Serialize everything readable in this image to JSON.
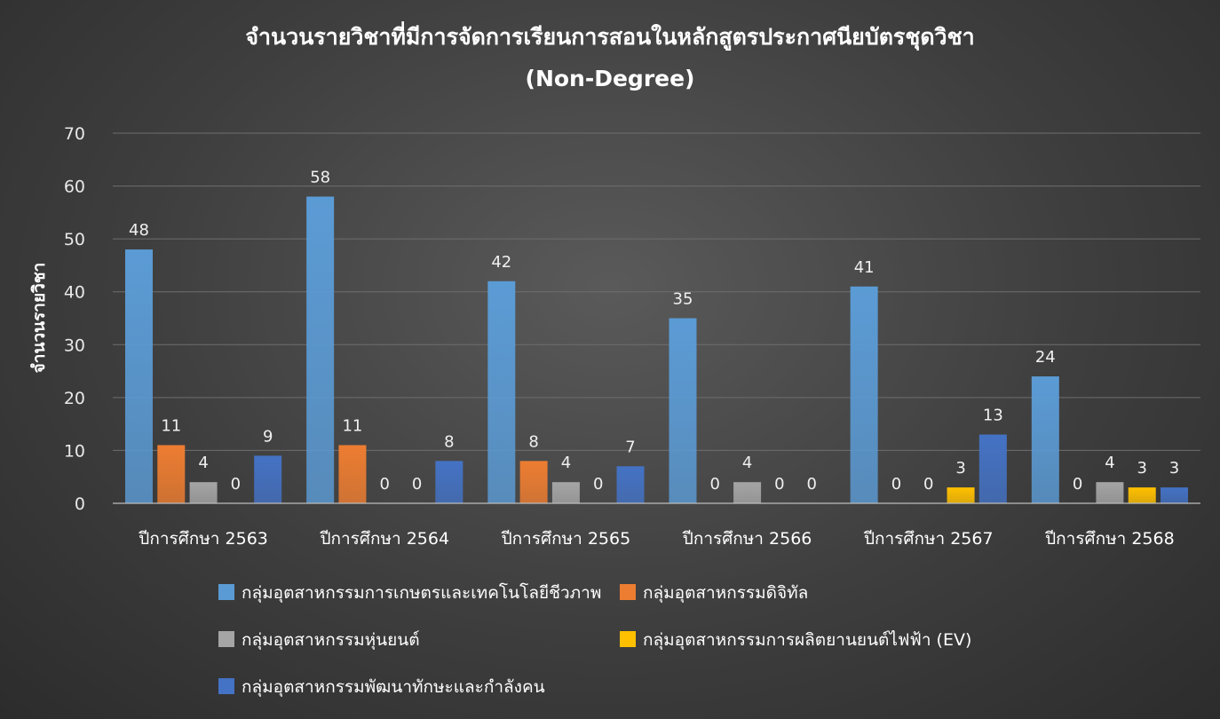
{
  "chart_data": {
    "type": "bar",
    "title": "จำนวนรายวิชาที่มีการจัดการเรียนการสอนในหลักสูตรประกาศนียบัตรชุดวิชา",
    "subtitle": "(Non-Degree)",
    "ylabel": "จำนวนรายวิชา",
    "xlabel": "",
    "ylim": [
      0,
      70
    ],
    "yticks": [
      0,
      10,
      20,
      30,
      40,
      50,
      60,
      70
    ],
    "grid": true,
    "legend_position": "bottom",
    "categories": [
      "ปีการศึกษา 2563",
      "ปีการศึกษา 2564",
      "ปีการศึกษา 2565",
      "ปีการศึกษา 2566",
      "ปีการศึกษา 2567",
      "ปีการศึกษา 2568"
    ],
    "series": [
      {
        "name": "กลุ่มอุตสาหกรรมการเกษตรและเทคโนโลยีชีวภาพ",
        "color": "#5b9bd5",
        "values": [
          48,
          58,
          42,
          35,
          41,
          24
        ],
        "labels": [
          "48",
          "58",
          "42",
          "35",
          "41",
          "24"
        ]
      },
      {
        "name": "กลุ่มอุตสาหกรรมดิจิทัล",
        "color": "#ed7d31",
        "values": [
          11,
          11,
          8,
          0,
          0,
          0
        ],
        "labels": [
          "11",
          "11",
          "8",
          "0",
          "0",
          "0"
        ]
      },
      {
        "name": "กลุ่มอุตสาหกรรมหุ่นยนต์",
        "color": "#a5a5a5",
        "values": [
          4,
          0,
          4,
          4,
          0,
          4
        ],
        "labels": [
          "4",
          "0",
          "4",
          "4",
          "0",
          "4"
        ]
      },
      {
        "name": "กลุ่มอุตสาหกรรมการผลิตยานยนต์ไฟฟ้า (EV)",
        "color": "#ffc000",
        "values": [
          0,
          0,
          0,
          0,
          3,
          3
        ],
        "labels": [
          "0",
          "0",
          "0",
          "0",
          "3",
          "3"
        ]
      },
      {
        "name": "กลุ่มอุตสาหกรรมพัฒนาทักษะและกำลังคน",
        "color": "#4472c4",
        "values": [
          9,
          8,
          7,
          0,
          13,
          3
        ],
        "labels": [
          "9",
          "8",
          "7",
          "0",
          "13",
          "3"
        ]
      }
    ]
  }
}
